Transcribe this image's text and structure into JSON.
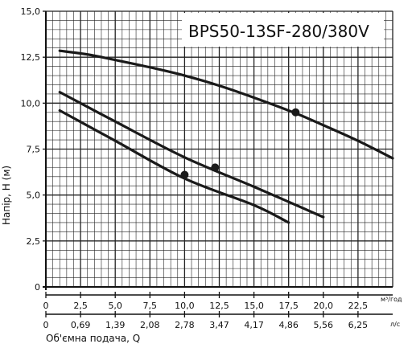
{
  "chart_data": {
    "type": "line",
    "title": "BPS50-13SF-280/380V",
    "xlabel": "Об'ємна подача, Q",
    "ylabel": "Напір, Н (м)",
    "x_unit": "м³/год",
    "x2_unit": "л/с",
    "xlim": [
      0,
      25
    ],
    "ylim": [
      0,
      15
    ],
    "x_ticks": [
      "0",
      "2,5",
      "5,0",
      "7,5",
      "10,0",
      "12,5",
      "15,0",
      "17,5",
      "20,0",
      "22,5"
    ],
    "x2_ticks": [
      "0",
      "0,69",
      "1,39",
      "2,08",
      "2,78",
      "3,47",
      "4,17",
      "4,86",
      "5,56",
      "6,25"
    ],
    "y_ticks": [
      "0",
      "2,5",
      "5,0",
      "7,5",
      "10,0",
      "12,5",
      "15,0"
    ],
    "grid": true,
    "series": [
      {
        "x": [
          1,
          3,
          5,
          7.5,
          10,
          12.5,
          15,
          18,
          20,
          22.5,
          25
        ],
        "y": [
          12.85,
          12.65,
          12.35,
          11.95,
          11.5,
          10.95,
          10.3,
          9.45,
          8.8,
          7.95,
          7.0
        ],
        "marker": {
          "x": 18,
          "y": 9.5
        }
      },
      {
        "x": [
          1,
          5,
          10,
          15,
          20
        ],
        "y": [
          10.6,
          9.0,
          7.05,
          5.45,
          3.8
        ],
        "marker": {
          "x": 12.2,
          "y": 6.5
        }
      },
      {
        "x": [
          1,
          5,
          10,
          15,
          17.5
        ],
        "y": [
          9.6,
          7.95,
          5.9,
          4.45,
          3.5
        ],
        "marker": {
          "x": 10,
          "y": 6.1
        }
      }
    ]
  }
}
